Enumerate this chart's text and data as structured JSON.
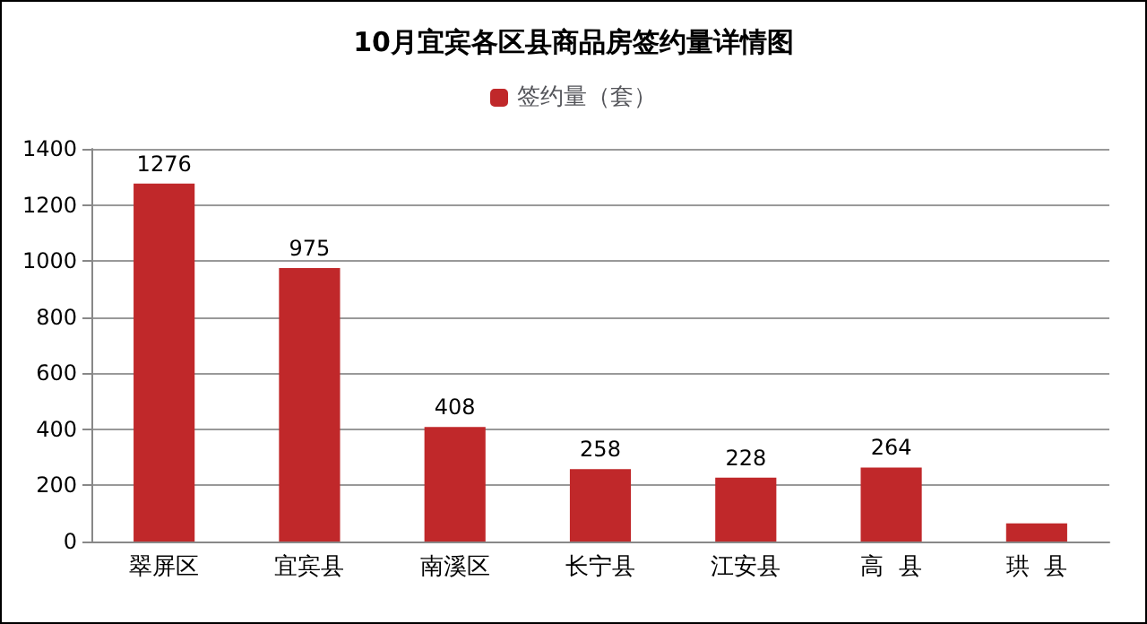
{
  "chart_data": {
    "type": "bar",
    "title": "10月宜宾各区县商品房签约量详情图",
    "categories": [
      "翠屏区",
      "宜宾县",
      "南溪区",
      "长宁县",
      "江安县",
      "高  县",
      "珙  县"
    ],
    "series": [
      {
        "name": "签约量（套）",
        "color": "#c0282a",
        "values": [
          1276,
          975,
          408,
          258,
          228,
          264,
          65
        ],
        "value_labels": [
          "1276",
          "975",
          "408",
          "258",
          "228",
          "264",
          null
        ]
      }
    ],
    "ylim": [
      0,
      1400
    ],
    "yticks": [
      0,
      200,
      400,
      600,
      800,
      1000,
      1200,
      1400
    ],
    "grid": "y",
    "legend": "top"
  }
}
